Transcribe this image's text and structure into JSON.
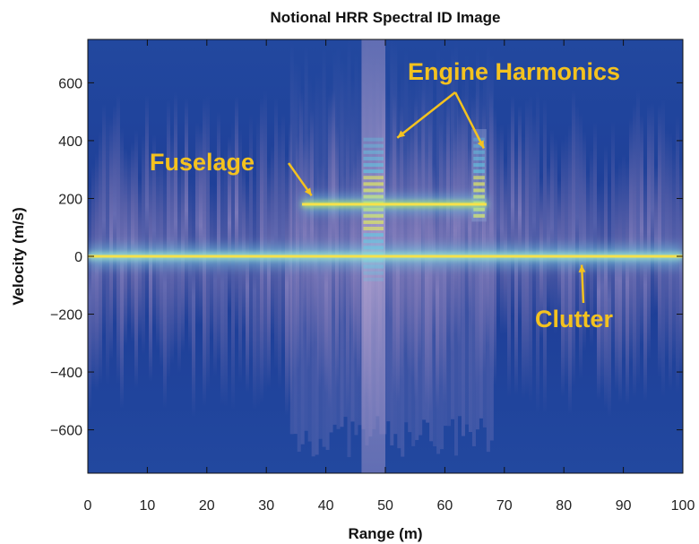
{
  "chart_data": {
    "type": "heatmap",
    "title": "Notional HRR Spectral ID Image",
    "xlabel": "Range (m)",
    "ylabel": "Velocity (m/s)",
    "xlim": [
      0,
      100
    ],
    "ylim": [
      -750,
      750
    ],
    "xticks": [
      0,
      10,
      20,
      30,
      40,
      50,
      60,
      70,
      80,
      90,
      100
    ],
    "yticks": [
      -600,
      -400,
      -200,
      0,
      200,
      400,
      600
    ],
    "xtick_labels": [
      "0",
      "10",
      "20",
      "30",
      "40",
      "50",
      "60",
      "70",
      "80",
      "90",
      "100"
    ],
    "ytick_labels": [
      "−600",
      "−400",
      "−200",
      "0",
      "200",
      "400",
      "600"
    ],
    "colors": {
      "background": "#1f3f99",
      "spread": "#8f7fb8",
      "core": "#6fd0e8",
      "line": "#f6e24a",
      "annotation": "#f4c21f"
    },
    "features": {
      "clutter_line_velocity": 0,
      "fuselage": {
        "velocity": 180,
        "range": [
          36,
          67
        ]
      },
      "engine_harmonics_bands": [
        {
          "range": [
            46,
            50
          ],
          "velocity": [
            -750,
            750
          ]
        },
        {
          "range": [
            64.5,
            67
          ],
          "velocity": [
            120,
            440
          ]
        }
      ]
    },
    "annotations": [
      {
        "text": "Fuselage",
        "at": [
          37,
          185
        ]
      },
      {
        "text": "Engine Harmonics",
        "at_points": [
          [
            52,
            410
          ],
          [
            67,
            380
          ]
        ]
      },
      {
        "text": "Clutter",
        "at": [
          83,
          -5
        ]
      }
    ]
  }
}
